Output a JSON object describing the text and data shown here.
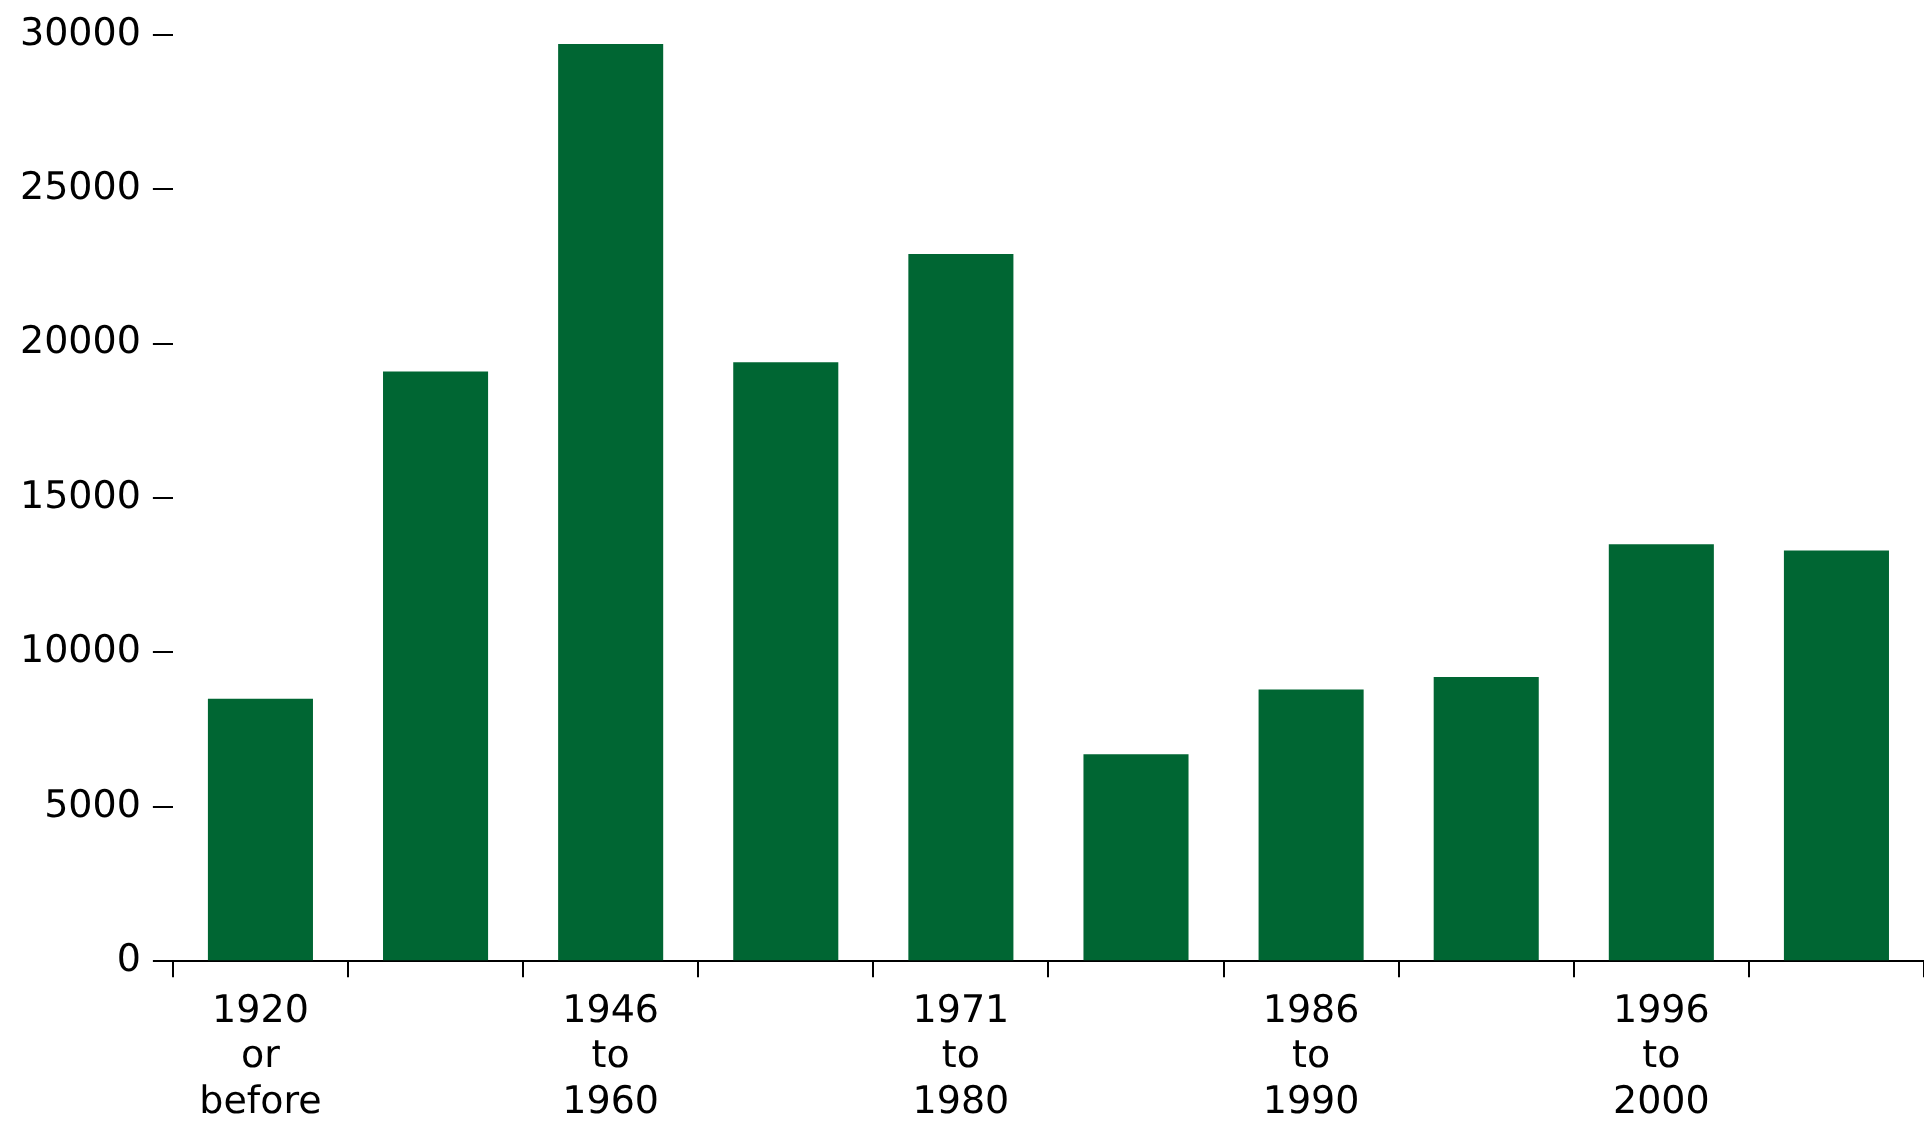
{
  "chart_data": {
    "type": "bar",
    "categories": [
      "1920\nor\nbefore",
      null,
      "1946\nto\n1960",
      null,
      "1971\nto\n1980",
      null,
      "1986\nto\n1990",
      null,
      "1996\nto\n2000",
      null
    ],
    "values": [
      8500,
      19100,
      29700,
      19400,
      22900,
      6700,
      8800,
      9200,
      13500,
      13300
    ],
    "color": "#006633",
    "ylim": [
      0,
      30000
    ],
    "yticks": [
      0,
      5000,
      10000,
      15000,
      20000,
      25000,
      30000
    ],
    "grid": false,
    "legend": false
  }
}
